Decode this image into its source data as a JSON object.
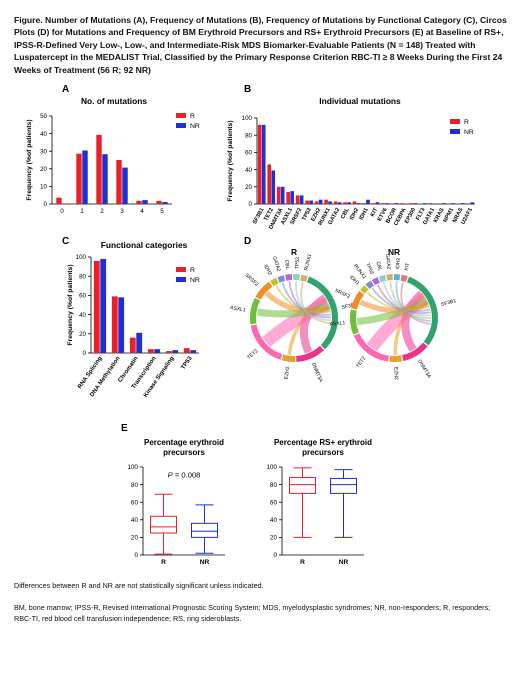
{
  "caption": "Figure. Number of Mutations (A), Frequency of Mutations (B), Frequency of Mutations by Functional Category (C), Circos Plots (D) for Mutations and Frequency of BM Erythroid Precursors and RS+ Erythroid Precursors (E) at Baseline of RS+, IPSS-R-Defined Very Low-, Low-, and Intermediate-Risk MDS Biomarker-Evaluable Patients (N = 148) Treated with Luspatercept in the MEDALIST Trial, Classified by the Primary Response Criterion RBC-TI ≥ 8 Weeks During the First 24 Weeks of Treatment (56 R; 92 NR)",
  "colors": {
    "R": "#e8202a",
    "NR": "#1f2fd6"
  },
  "footnotes": [
    "Differences between R and NR are not statistically significant unless indicated.",
    "BM, bone marrow; IPSS-R, Revised International Prognostic Scoring System; MDS, myelodysplastic syndromes; NR, non-responders; R, responders; RBC-TI, red blood cell transfusion independence; RS, ring sideroblasts."
  ],
  "chart_data": [
    {
      "panel": "A",
      "type": "bar",
      "title": "No. of mutations",
      "ylabel": "Frequency (%of patients)",
      "ylim": [
        0,
        50
      ],
      "yticks": [
        0,
        10,
        20,
        30,
        40,
        50
      ],
      "categories": [
        "0",
        "1",
        "2",
        "3",
        "4",
        "5"
      ],
      "series": [
        {
          "name": "R",
          "values": [
            3.6,
            28.6,
            39.3,
            25.0,
            1.8,
            1.8
          ]
        },
        {
          "name": "NR",
          "values": [
            0,
            30.4,
            28.3,
            20.7,
            2.2,
            1.1
          ]
        }
      ]
    },
    {
      "panel": "B",
      "type": "bar",
      "title": "Individual mutations",
      "ylabel": "Frequency (%of patients)",
      "ylim": [
        0,
        100
      ],
      "yticks": [
        0,
        20,
        40,
        60,
        80,
        100
      ],
      "categories": [
        "SF3B1",
        "TET2",
        "DNMT3A",
        "ASXL1",
        "SRSF2",
        "TP53",
        "EZH2",
        "RUNX1",
        "GATA2",
        "CBL",
        "IDH2",
        "IDH1",
        "KIT",
        "ETV6",
        "BCOR",
        "CEBPA",
        "EP300",
        "FLT3",
        "GATA1",
        "KRAS",
        "NPM1",
        "NRAS",
        "U2AF1"
      ],
      "series": [
        {
          "name": "R",
          "values": [
            92,
            46,
            20,
            14,
            10,
            4,
            3,
            5,
            3,
            2,
            3,
            1,
            1,
            1,
            0,
            1,
            1,
            0,
            1,
            0,
            0,
            0,
            0
          ]
        },
        {
          "name": "NR",
          "values": [
            92,
            39,
            20,
            15,
            10,
            4,
            5,
            3,
            2,
            2,
            1,
            5,
            2,
            1,
            1,
            0,
            1,
            1,
            0,
            1,
            1,
            1,
            2
          ]
        }
      ]
    },
    {
      "panel": "C",
      "type": "bar",
      "title": "Functional categories",
      "ylabel": "Frequency (%of patients)",
      "ylim": [
        0,
        100
      ],
      "yticks": [
        0,
        20,
        40,
        60,
        80,
        100
      ],
      "categories": [
        "RNA Splicing",
        "DNA Methylation",
        "Chromatin",
        "Transcription",
        "Kinase Signaling",
        "TP53"
      ],
      "series": [
        {
          "name": "R",
          "values": [
            96,
            59,
            16,
            4,
            2,
            5
          ]
        },
        {
          "name": "NR",
          "values": [
            98,
            58,
            21,
            4,
            3,
            3
          ]
        }
      ]
    },
    {
      "panel": "D",
      "type": "circos",
      "plots": [
        {
          "title": "R",
          "segments": [
            "SF3B1",
            "DNMT3A",
            "EZH2",
            "TET2",
            "ASXL1",
            "SRSF2",
            "IDH2",
            "GATA2",
            "CBL",
            "TP53",
            "RUNX1"
          ]
        },
        {
          "title": "NR",
          "segments": [
            "SF3B1",
            "DNMT3A",
            "EZH2",
            "TET2",
            "ASXL1",
            "SRSF2",
            "IDH1",
            "RUNX1",
            "TP53",
            "CBL",
            "GATA2",
            "IDH2",
            "KIT"
          ]
        }
      ]
    },
    {
      "panel": "E",
      "type": "box",
      "plots": [
        {
          "title": "Percentage erythroid precursors",
          "annotation": "P = 0.008",
          "ylim": [
            0,
            100
          ],
          "yticks": [
            0,
            20,
            40,
            60,
            80,
            100
          ],
          "boxes": [
            {
              "name": "R",
              "min": 1,
              "q1": 25,
              "median": 32,
              "q3": 44,
              "max": 69
            },
            {
              "name": "NR",
              "min": 2,
              "q1": 20,
              "median": 27,
              "q3": 36,
              "max": 57
            }
          ]
        },
        {
          "title": "Percentage RS+ erythroid precursors",
          "ylim": [
            0,
            100
          ],
          "yticks": [
            0,
            20,
            40,
            60,
            80,
            100
          ],
          "boxes": [
            {
              "name": "R",
              "min": 20,
              "q1": 70,
              "median": 80,
              "q3": 88,
              "max": 99
            },
            {
              "name": "NR",
              "min": 20,
              "q1": 70,
              "median": 80,
              "q3": 87,
              "max": 97
            }
          ]
        }
      ]
    }
  ]
}
